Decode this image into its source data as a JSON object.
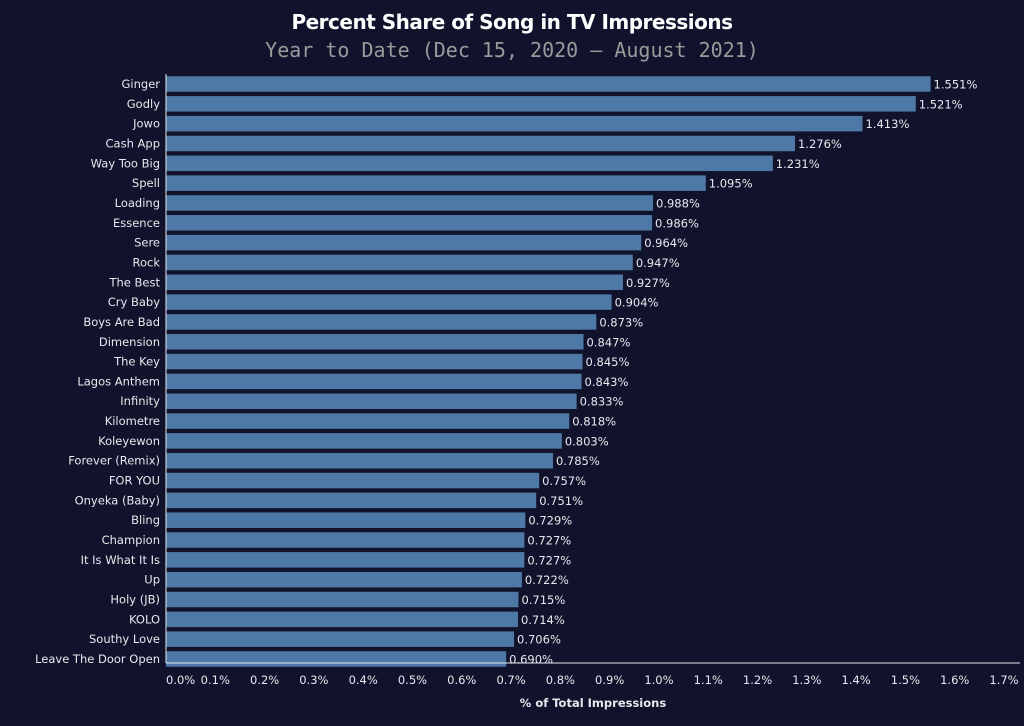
{
  "chart_data": {
    "type": "bar",
    "orientation": "horizontal",
    "title": "Percent Share of Song in TV Impressions",
    "subtitle": "Year to Date (Dec 15, 2020 — August 2021)",
    "xlabel": "% of Total Impressions",
    "ylabel": "",
    "xlim": [
      0,
      1.7
    ],
    "x_ticks": [
      "0.0%",
      "0.1%",
      "0.2%",
      "0.3%",
      "0.4%",
      "0.5%",
      "0.6%",
      "0.7%",
      "0.8%",
      "0.9%",
      "1.0%",
      "1.1%",
      "1.2%",
      "1.3%",
      "1.4%",
      "1.5%",
      "1.6%",
      "1.7%"
    ],
    "grid": false,
    "bar_color": "#4e79a7",
    "background_color": "#10132b",
    "categories": [
      "Ginger",
      "Godly",
      "Jowo",
      "Cash App",
      "Way Too Big",
      "Spell",
      "Loading",
      "Essence",
      "Sere",
      "Rock",
      "The Best",
      "Cry Baby",
      "Boys Are Bad",
      "Dimension",
      "The Key",
      "Lagos Anthem",
      "Infinity",
      "Kilometre",
      "Koleyewon",
      "Forever (Remix)",
      "FOR YOU",
      "Onyeka (Baby)",
      "Bling",
      "Champion",
      "It Is What It Is",
      "Up",
      "Holy (JB)",
      "KOLO",
      "Southy Love",
      "Leave The Door Open"
    ],
    "values": [
      1.551,
      1.521,
      1.413,
      1.276,
      1.231,
      1.095,
      0.988,
      0.986,
      0.964,
      0.947,
      0.927,
      0.904,
      0.873,
      0.847,
      0.845,
      0.843,
      0.833,
      0.818,
      0.803,
      0.785,
      0.757,
      0.751,
      0.729,
      0.727,
      0.727,
      0.722,
      0.715,
      0.714,
      0.706,
      0.69
    ],
    "data_labels": [
      "1.551%",
      "1.521%",
      "1.413%",
      "1.276%",
      "1.231%",
      "1.095%",
      "0.988%",
      "0.986%",
      "0.964%",
      "0.947%",
      "0.927%",
      "0.904%",
      "0.873%",
      "0.847%",
      "0.845%",
      "0.843%",
      "0.833%",
      "0.818%",
      "0.803%",
      "0.785%",
      "0.757%",
      "0.751%",
      "0.729%",
      "0.727%",
      "0.727%",
      "0.722%",
      "0.715%",
      "0.714%",
      "0.706%",
      "0.690%"
    ]
  }
}
